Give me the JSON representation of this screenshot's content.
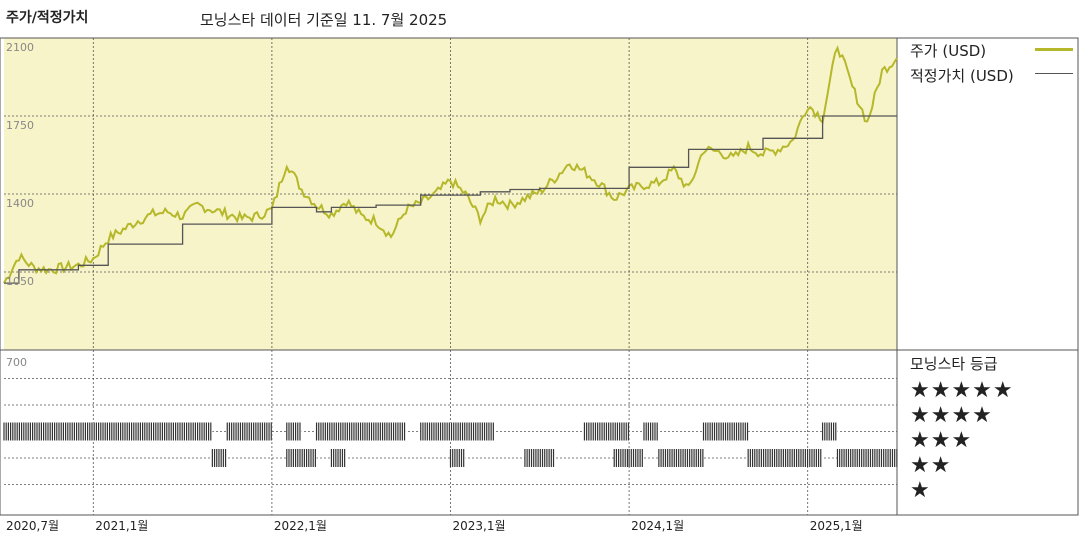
{
  "title": "주가/적정가치",
  "subtitle": "모닝스타 데이터 기준일 11. 7월 2025",
  "legend": {
    "price_label": "주가 (USD)",
    "fair_label": "적정가치 (USD)",
    "price_color": "#b5b82a",
    "fair_color": "#555555"
  },
  "rating": {
    "title": "모닝스타 등급",
    "stars": [
      "★★★★★",
      "★★★★",
      "★★★",
      "★★",
      "★"
    ]
  },
  "colors": {
    "plot_bg": "#f8f4c9",
    "grid": "#555555"
  },
  "chart_data": {
    "type": "line",
    "x_range": [
      "2020-07",
      "2025-07"
    ],
    "x_ticks": [
      "2020,7월",
      "2021,1월",
      "2022,1월",
      "2023,1월",
      "2024,1월",
      "2025,1월"
    ],
    "ylim": [
      700,
      2100
    ],
    "y_ticks": [
      2100,
      1750,
      1400,
      1050,
      700
    ],
    "series": [
      {
        "name": "주가 (USD)",
        "x": [
          "2020-07",
          "2020-08",
          "2020-09",
          "2020-10",
          "2020-11",
          "2020-12",
          "2021-01",
          "2021-02",
          "2021-03",
          "2021-04",
          "2021-05",
          "2021-06",
          "2021-07",
          "2021-08",
          "2021-09",
          "2021-10",
          "2021-11",
          "2021-12",
          "2022-01",
          "2022-02",
          "2022-03",
          "2022-04",
          "2022-05",
          "2022-06",
          "2022-07",
          "2022-08",
          "2022-09",
          "2022-10",
          "2022-11",
          "2022-12",
          "2023-01",
          "2023-02",
          "2023-03",
          "2023-04",
          "2023-05",
          "2023-06",
          "2023-07",
          "2023-08",
          "2023-09",
          "2023-10",
          "2023-11",
          "2023-12",
          "2024-01",
          "2024-02",
          "2024-03",
          "2024-04",
          "2024-05",
          "2024-06",
          "2024-07",
          "2024-08",
          "2024-09",
          "2024-10",
          "2024-11",
          "2024-12",
          "2025-01",
          "2025-02",
          "2025-03",
          "2025-04",
          "2025-05",
          "2025-06",
          "2025-07"
        ],
        "values": [
          1000,
          1120,
          1070,
          1060,
          1070,
          1080,
          1110,
          1200,
          1240,
          1280,
          1310,
          1320,
          1300,
          1350,
          1330,
          1310,
          1290,
          1300,
          1330,
          1540,
          1420,
          1350,
          1310,
          1370,
          1300,
          1280,
          1210,
          1330,
          1360,
          1400,
          1460,
          1400,
          1290,
          1380,
          1350,
          1380,
          1410,
          1470,
          1540,
          1500,
          1450,
          1380,
          1420,
          1440,
          1450,
          1510,
          1420,
          1600,
          1590,
          1560,
          1610,
          1580,
          1600,
          1640,
          1800,
          1740,
          2070,
          1880,
          1720,
          1950,
          2010
        ]
      },
      {
        "name": "적정가치 (USD)",
        "steps": [
          {
            "x": "2020-07",
            "value": 1000
          },
          {
            "x": "2020-08",
            "value": 1060
          },
          {
            "x": "2020-12",
            "value": 1080
          },
          {
            "x": "2021-02",
            "value": 1175
          },
          {
            "x": "2021-07",
            "value": 1265
          },
          {
            "x": "2022-01",
            "value": 1340
          },
          {
            "x": "2022-04",
            "value": 1320
          },
          {
            "x": "2022-05",
            "value": 1340
          },
          {
            "x": "2022-08",
            "value": 1350
          },
          {
            "x": "2022-11",
            "value": 1395
          },
          {
            "x": "2023-03",
            "value": 1410
          },
          {
            "x": "2023-05",
            "value": 1420
          },
          {
            "x": "2023-07",
            "value": 1425
          },
          {
            "x": "2023-09",
            "value": 1425
          },
          {
            "x": "2024-01",
            "value": 1520
          },
          {
            "x": "2024-05",
            "value": 1600
          },
          {
            "x": "2024-10",
            "value": 1650
          },
          {
            "x": "2025-02",
            "value": 1750
          },
          {
            "x": "2025-07",
            "value": 1750
          }
        ]
      }
    ],
    "rating_bands": [
      {
        "stars": 3,
        "segments": [
          [
            "2020-07",
            "2021-09"
          ],
          [
            "2021-10",
            "2022-01"
          ],
          [
            "2022-02",
            "2022-03"
          ],
          [
            "2022-04",
            "2022-10"
          ],
          [
            "2022-11",
            "2023-04"
          ],
          [
            "2023-10",
            "2024-01"
          ],
          [
            "2024-02",
            "2024-03"
          ],
          [
            "2024-06",
            "2024-09"
          ],
          [
            "2025-02",
            "2025-03"
          ]
        ]
      },
      {
        "stars": 2,
        "segments": [
          [
            "2021-09",
            "2021-10"
          ],
          [
            "2022-02",
            "2022-04"
          ],
          [
            "2022-05",
            "2022-06"
          ],
          [
            "2023-01",
            "2023-02"
          ],
          [
            "2023-06",
            "2023-08"
          ],
          [
            "2023-12",
            "2024-01"
          ],
          [
            "2024-01",
            "2024-02"
          ],
          [
            "2024-03",
            "2024-06"
          ],
          [
            "2024-09",
            "2025-02"
          ],
          [
            "2025-03",
            "2025-07"
          ]
        ]
      }
    ]
  }
}
